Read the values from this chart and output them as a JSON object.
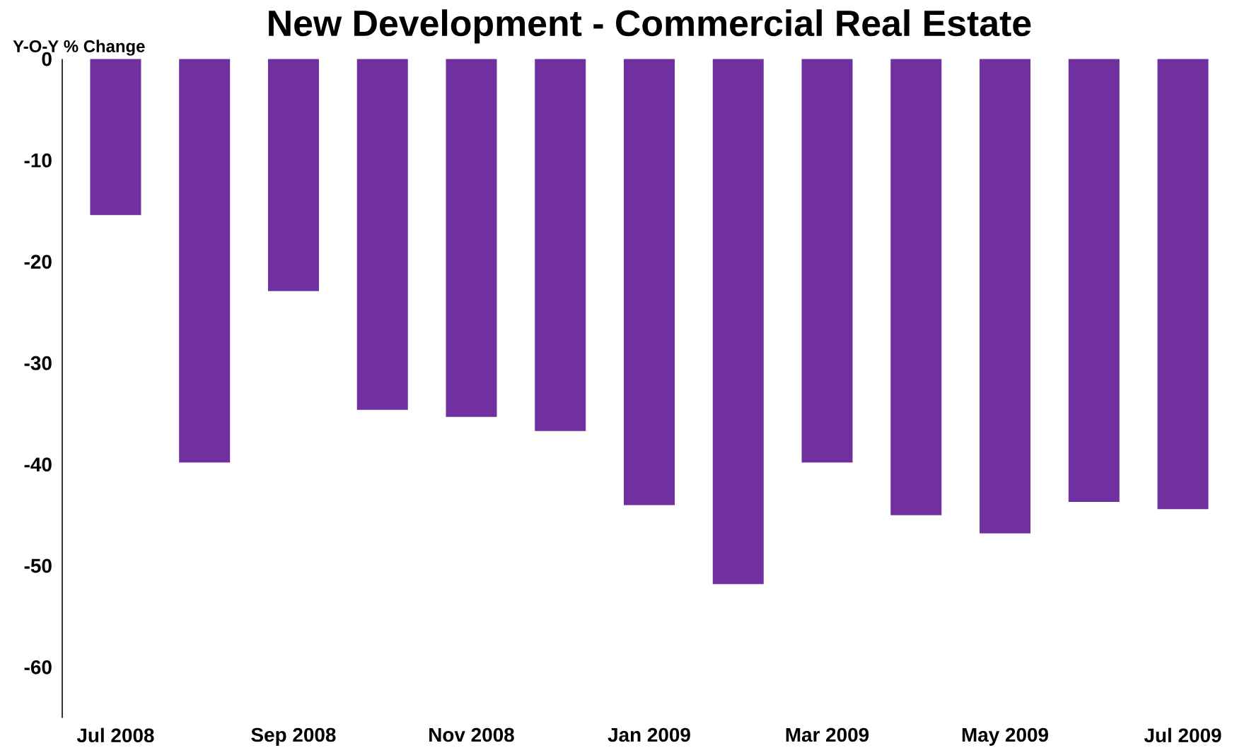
{
  "chart_data": {
    "type": "bar",
    "title": "New Development - Commercial Real Estate",
    "ylabel": "Y-O-Y % Change",
    "categories": [
      "Jul 2008",
      null,
      "Sep 2008",
      null,
      "Nov 2008",
      null,
      "Jan 2009",
      null,
      "Mar 2009",
      null,
      "May 2009",
      null,
      "Jul 2009"
    ],
    "values": [
      -15.4,
      -39.8,
      -22.9,
      -34.6,
      -35.3,
      -36.7,
      -44.0,
      -51.8,
      -39.8,
      -45.0,
      -46.8,
      -43.7,
      -44.4
    ],
    "color": "#7030a0",
    "ylim": [
      -65,
      0
    ],
    "yticks": [
      -60,
      -50,
      -40,
      -30,
      -20,
      -10,
      0
    ],
    "grid": false
  }
}
